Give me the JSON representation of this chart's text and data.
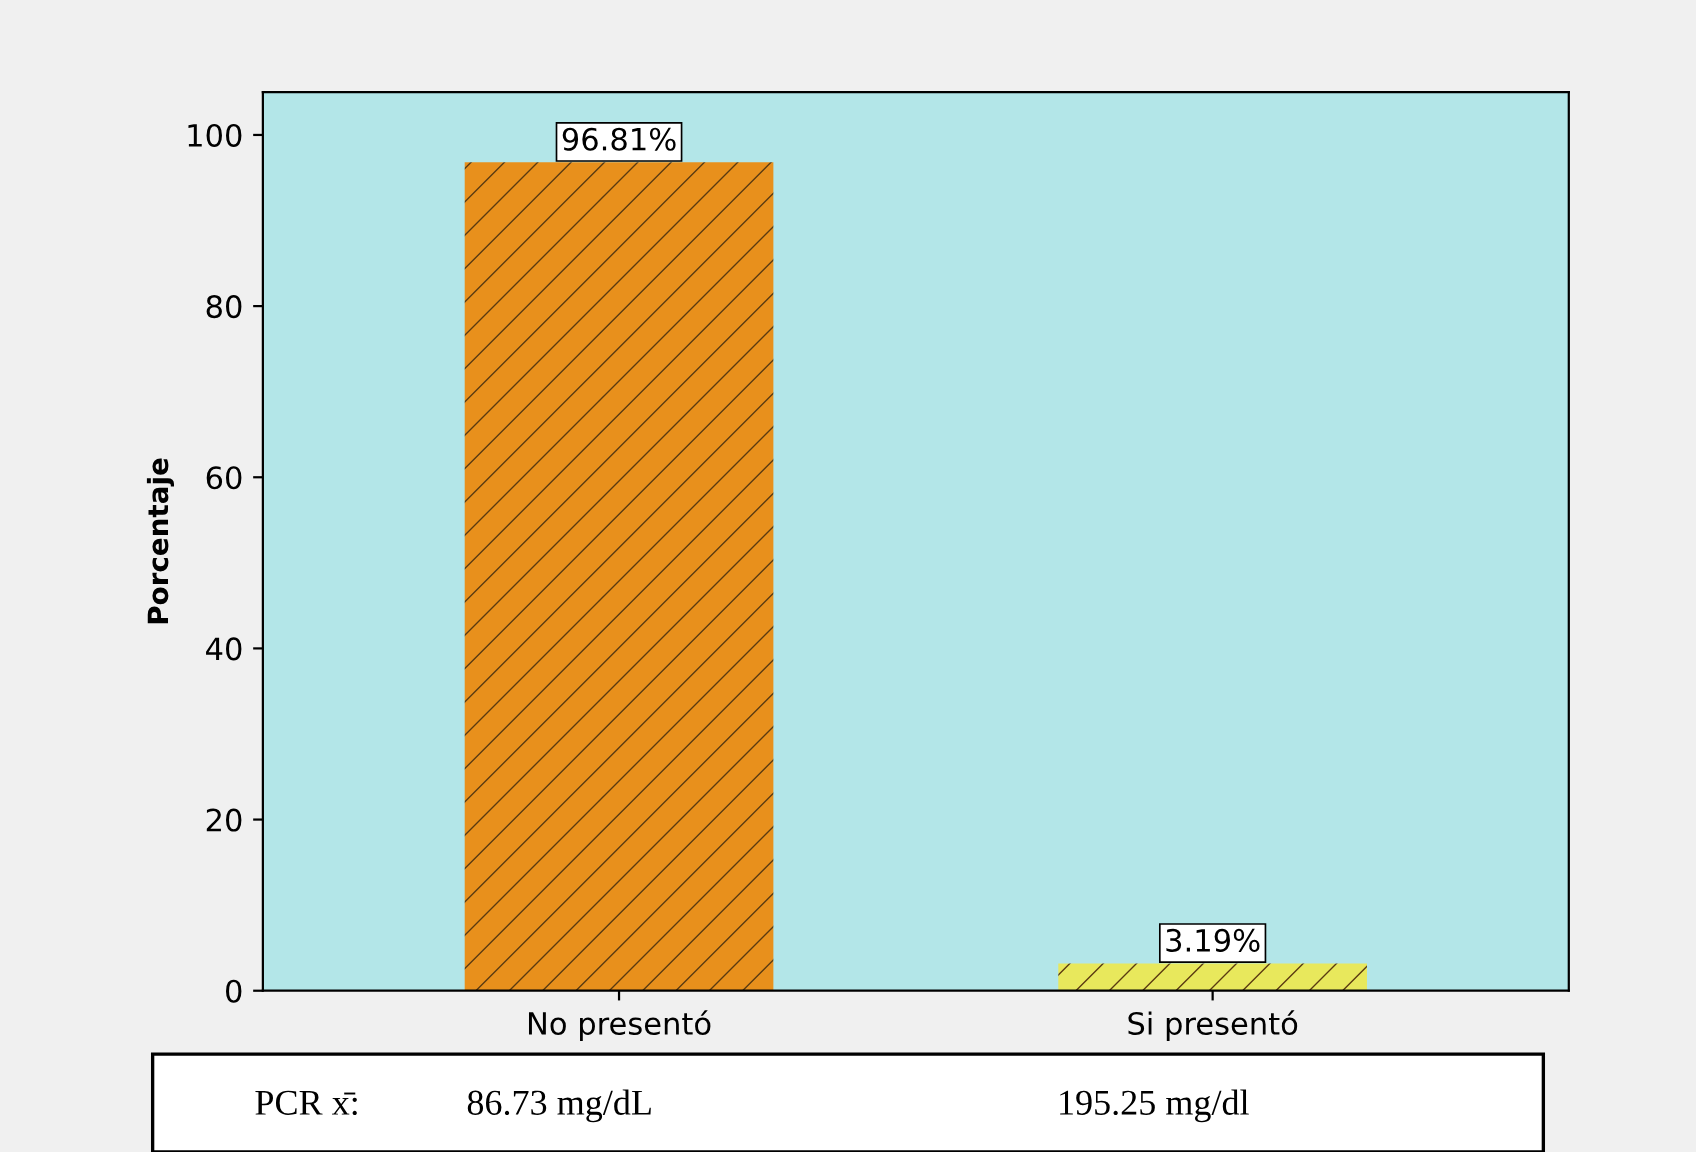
{
  "chart_data": {
    "type": "bar",
    "ylabel": "Porcentaje",
    "categories": [
      "No presentó",
      "Si presentó"
    ],
    "values": [
      96.81,
      3.19
    ],
    "colors": [
      "#e8901c",
      "#e8e85c"
    ],
    "value_labels": [
      "96.81%",
      "3.19%"
    ],
    "ylim": [
      0,
      105
    ],
    "yticks": [
      0,
      20,
      40,
      60,
      80,
      100
    ],
    "grid": false,
    "annotations": [
      "PCR x̄:",
      "86.73 mg/dL",
      "195.25 mg/dl"
    ]
  }
}
